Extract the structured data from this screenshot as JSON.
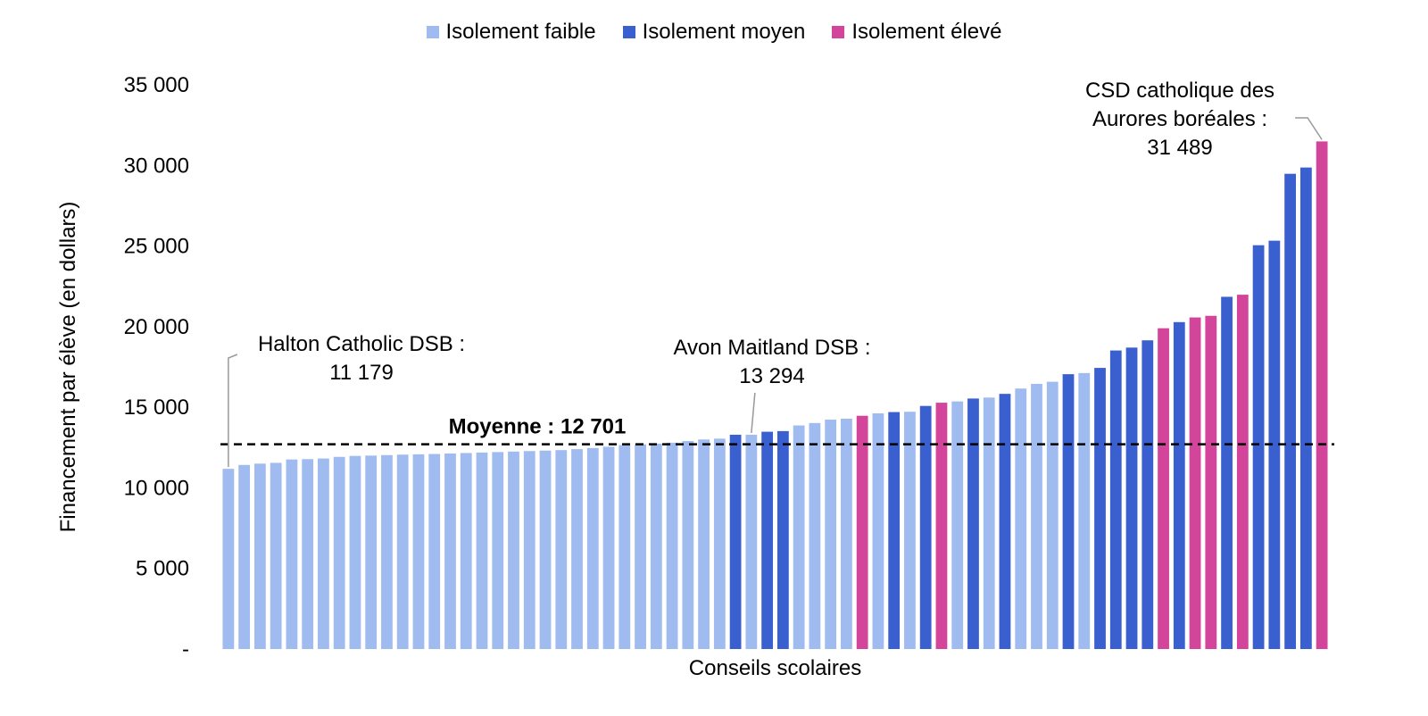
{
  "chart_data": {
    "type": "bar",
    "title": "",
    "xlabel": "Conseils scolaires",
    "ylabel": "Financement par élève (en dollars)",
    "ylim": [
      0,
      35000
    ],
    "yticks": [
      {
        "value": 0,
        "label": "-"
      },
      {
        "value": 5000,
        "label": "5 000"
      },
      {
        "value": 10000,
        "label": "10 000"
      },
      {
        "value": 15000,
        "label": "15 000"
      },
      {
        "value": 20000,
        "label": "20 000"
      },
      {
        "value": 25000,
        "label": "25 000"
      },
      {
        "value": 30000,
        "label": "30 000"
      },
      {
        "value": 35000,
        "label": "35 000"
      }
    ],
    "grid": false,
    "legend_position": "top",
    "series": [
      {
        "key": "low",
        "name": "Isolement faible",
        "color": "#9FBBF0"
      },
      {
        "key": "mid",
        "name": "Isolement moyen",
        "color": "#3A60D0"
      },
      {
        "key": "high",
        "name": "Isolement élevé",
        "color": "#D2459A"
      }
    ],
    "bars": [
      {
        "value": 11179,
        "group": "low"
      },
      {
        "value": 11420,
        "group": "low"
      },
      {
        "value": 11500,
        "group": "low"
      },
      {
        "value": 11550,
        "group": "low"
      },
      {
        "value": 11760,
        "group": "low"
      },
      {
        "value": 11780,
        "group": "low"
      },
      {
        "value": 11820,
        "group": "low"
      },
      {
        "value": 11920,
        "group": "low"
      },
      {
        "value": 11980,
        "group": "low"
      },
      {
        "value": 12000,
        "group": "low"
      },
      {
        "value": 12030,
        "group": "low"
      },
      {
        "value": 12060,
        "group": "low"
      },
      {
        "value": 12080,
        "group": "low"
      },
      {
        "value": 12100,
        "group": "low"
      },
      {
        "value": 12130,
        "group": "low"
      },
      {
        "value": 12160,
        "group": "low"
      },
      {
        "value": 12190,
        "group": "low"
      },
      {
        "value": 12220,
        "group": "low"
      },
      {
        "value": 12250,
        "group": "low"
      },
      {
        "value": 12280,
        "group": "low"
      },
      {
        "value": 12310,
        "group": "low"
      },
      {
        "value": 12340,
        "group": "low"
      },
      {
        "value": 12400,
        "group": "low"
      },
      {
        "value": 12470,
        "group": "low"
      },
      {
        "value": 12550,
        "group": "low"
      },
      {
        "value": 12650,
        "group": "low"
      },
      {
        "value": 12700,
        "group": "low"
      },
      {
        "value": 12740,
        "group": "low"
      },
      {
        "value": 12800,
        "group": "low"
      },
      {
        "value": 12900,
        "group": "low"
      },
      {
        "value": 13000,
        "group": "low"
      },
      {
        "value": 13050,
        "group": "low"
      },
      {
        "value": 13294,
        "group": "mid"
      },
      {
        "value": 13294,
        "group": "low"
      },
      {
        "value": 13480,
        "group": "mid"
      },
      {
        "value": 13520,
        "group": "mid"
      },
      {
        "value": 13870,
        "group": "low"
      },
      {
        "value": 14020,
        "group": "low"
      },
      {
        "value": 14230,
        "group": "low"
      },
      {
        "value": 14290,
        "group": "low"
      },
      {
        "value": 14470,
        "group": "high"
      },
      {
        "value": 14620,
        "group": "low"
      },
      {
        "value": 14700,
        "group": "mid"
      },
      {
        "value": 14720,
        "group": "low"
      },
      {
        "value": 15080,
        "group": "mid"
      },
      {
        "value": 15280,
        "group": "high"
      },
      {
        "value": 15360,
        "group": "low"
      },
      {
        "value": 15540,
        "group": "mid"
      },
      {
        "value": 15600,
        "group": "low"
      },
      {
        "value": 15830,
        "group": "mid"
      },
      {
        "value": 16160,
        "group": "low"
      },
      {
        "value": 16450,
        "group": "low"
      },
      {
        "value": 16580,
        "group": "low"
      },
      {
        "value": 17050,
        "group": "mid"
      },
      {
        "value": 17120,
        "group": "low"
      },
      {
        "value": 17440,
        "group": "mid"
      },
      {
        "value": 18520,
        "group": "mid"
      },
      {
        "value": 18700,
        "group": "mid"
      },
      {
        "value": 19150,
        "group": "mid"
      },
      {
        "value": 19900,
        "group": "high"
      },
      {
        "value": 20280,
        "group": "mid"
      },
      {
        "value": 20570,
        "group": "high"
      },
      {
        "value": 20670,
        "group": "high"
      },
      {
        "value": 21850,
        "group": "mid"
      },
      {
        "value": 21980,
        "group": "high"
      },
      {
        "value": 25050,
        "group": "mid"
      },
      {
        "value": 25330,
        "group": "mid"
      },
      {
        "value": 29480,
        "group": "mid"
      },
      {
        "value": 29870,
        "group": "mid"
      },
      {
        "value": 31489,
        "group": "high"
      }
    ],
    "average": {
      "value": 12701,
      "label": "Moyenne : 12 701"
    },
    "annotations": [
      {
        "bar_index": 0,
        "lines": [
          "Halton Catholic DSB :",
          "11 179"
        ]
      },
      {
        "bar_index": 33,
        "lines": [
          "Avon Maitland DSB :",
          "13 294"
        ]
      },
      {
        "bar_index": 69,
        "lines": [
          "CSD catholique des",
          "Aurores boréales :",
          "31 489"
        ]
      }
    ]
  }
}
